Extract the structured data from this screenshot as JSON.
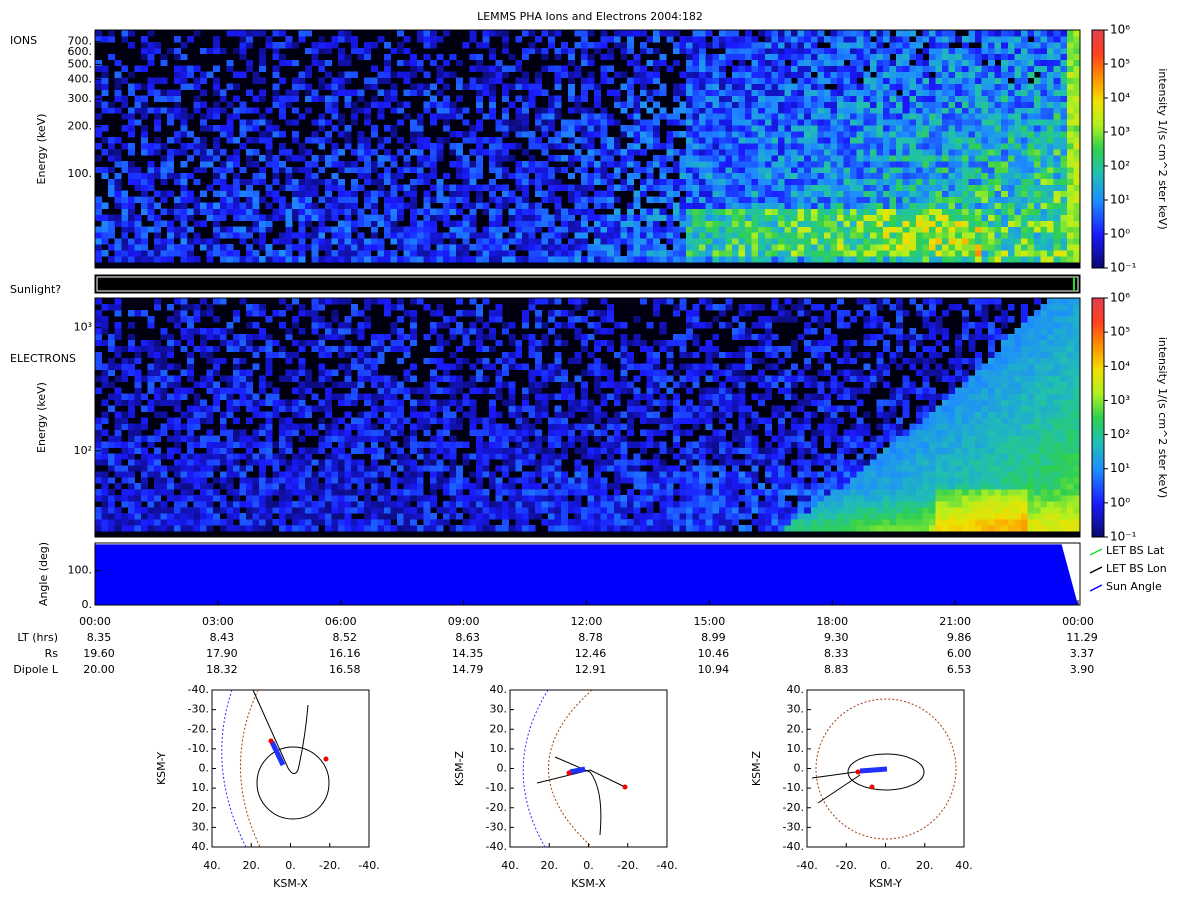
{
  "title": "LEMMS PHA Ions and Electrons  2004:182",
  "sunlight_label": "Sunlight?",
  "time_axis": {
    "xlim": [
      0,
      24
    ],
    "xticks": [
      {
        "value": 0,
        "label": "00:00"
      },
      {
        "value": 3,
        "label": "03:00"
      },
      {
        "value": 6,
        "label": "06:00"
      },
      {
        "value": 9,
        "label": "09:00"
      },
      {
        "value": 12,
        "label": "12:00"
      },
      {
        "value": 15,
        "label": "15:00"
      },
      {
        "value": 18,
        "label": "18:00"
      },
      {
        "value": 21,
        "label": "21:00"
      },
      {
        "value": 24,
        "label": "00:00"
      }
    ]
  },
  "panels": [
    {
      "label": "IONS",
      "y_label": "Energy (keV)",
      "log_y": true,
      "ylim": [
        25,
        830
      ],
      "yticks": [
        {
          "value": 100,
          "label": "100."
        },
        {
          "value": 200,
          "label": "200."
        },
        {
          "value": 300,
          "label": "300."
        },
        {
          "value": 400,
          "label": "400."
        },
        {
          "value": 500,
          "label": "500."
        },
        {
          "value": 600,
          "label": "600."
        },
        {
          "value": 700,
          "label": "700."
        }
      ],
      "colorbar": {
        "label": "intensity 1/(s cm^2 ster keV)",
        "lim": [
          0.1,
          1000000
        ],
        "ticks": [
          {
            "value": 0.1,
            "label": "10⁻¹"
          },
          {
            "value": 1,
            "label": "10⁰"
          },
          {
            "value": 10,
            "label": "10¹"
          },
          {
            "value": 100,
            "label": "10²"
          },
          {
            "value": 1000,
            "label": "10³"
          },
          {
            "value": 10000,
            "label": "10⁴"
          },
          {
            "value": 100000,
            "label": "10⁵"
          },
          {
            "value": 1000000,
            "label": "10⁶"
          }
        ]
      }
    },
    {
      "label": "ELECTRONS",
      "y_label": "Energy (keV)",
      "log_y": true,
      "ylim": [
        20,
        1740
      ],
      "yticks": [
        {
          "value": 100,
          "label": "10²"
        },
        {
          "value": 1000,
          "label": "10³"
        }
      ],
      "colorbar": {
        "label": "intensity 1/(s cm^2 ster keV)",
        "lim": [
          0.1,
          1000000
        ],
        "ticks": [
          {
            "value": 0.1,
            "label": "10⁻¹"
          },
          {
            "value": 1,
            "label": "10⁰"
          },
          {
            "value": 10,
            "label": "10¹"
          },
          {
            "value": 100,
            "label": "10²"
          },
          {
            "value": 1000,
            "label": "10³"
          },
          {
            "value": 10000,
            "label": "10⁴"
          },
          {
            "value": 100000,
            "label": "10⁵"
          },
          {
            "value": 1000000,
            "label": "10⁶"
          }
        ]
      }
    },
    {
      "y_label": "Angle (deg)",
      "ylim": [
        0,
        180
      ],
      "yticks": [
        {
          "value": 0,
          "label": "0."
        },
        {
          "value": 100,
          "label": "100."
        }
      ],
      "series": [
        {
          "name": "LET BS Lat",
          "color": "#22dd22"
        },
        {
          "name": "LET BS Lon",
          "color": "#000000"
        },
        {
          "name": "Sun Angle",
          "color": "#0000ff",
          "x": [
            0,
            3,
            6,
            9,
            12,
            15,
            18,
            21,
            23.6,
            24
          ],
          "values": [
            176,
            176,
            176,
            176,
            176,
            176,
            176,
            176,
            176,
            0
          ]
        }
      ]
    }
  ],
  "ephemeris": [
    {
      "label": "LT (hrs)",
      "values": [
        "8.35",
        "8.43",
        "8.52",
        "8.63",
        "8.78",
        "8.99",
        "9.30",
        "9.86",
        "11.29"
      ]
    },
    {
      "label": "Rs",
      "values": [
        "19.60",
        "17.90",
        "16.16",
        "14.35",
        "12.46",
        "10.46",
        "8.33",
        "6.00",
        "3.37"
      ]
    },
    {
      "label": "Dipole L",
      "values": [
        "20.00",
        "18.32",
        "16.58",
        "14.79",
        "12.91",
        "10.94",
        "8.83",
        "6.53",
        "3.90"
      ]
    }
  ],
  "orbits": [
    {
      "x_label": "KSM-X",
      "y_label": "KSM-Y",
      "xlim": [
        40,
        -40
      ],
      "ylim": [
        40,
        -40
      ],
      "xticks": [
        {
          "value": 40,
          "label": "40."
        },
        {
          "value": 20,
          "label": "20."
        },
        {
          "value": 0,
          "label": "0."
        },
        {
          "value": -20,
          "label": "-20."
        },
        {
          "value": -40,
          "label": "-40."
        }
      ],
      "yticks": [
        {
          "value": -40,
          "label": "-40."
        },
        {
          "value": -30,
          "label": "-30."
        },
        {
          "value": -20,
          "label": "-20."
        },
        {
          "value": -10,
          "label": "-10."
        },
        {
          "value": 0,
          "label": "0."
        },
        {
          "value": 10,
          "label": "10."
        },
        {
          "value": 20,
          "label": "20."
        },
        {
          "value": 30,
          "label": "30."
        },
        {
          "value": 40,
          "label": "40."
        }
      ]
    },
    {
      "x_label": "KSM-X",
      "y_label": "KSM-Z",
      "xlim": [
        40,
        -40
      ],
      "ylim": [
        -40,
        40
      ],
      "xticks": [
        {
          "value": 40,
          "label": "40."
        },
        {
          "value": 20,
          "label": "20."
        },
        {
          "value": 0,
          "label": "0."
        },
        {
          "value": -20,
          "label": "-20."
        },
        {
          "value": -40,
          "label": "-40."
        }
      ],
      "yticks": [
        {
          "value": 40,
          "label": "40."
        },
        {
          "value": 30,
          "label": "30."
        },
        {
          "value": 20,
          "label": "20."
        },
        {
          "value": 10,
          "label": "10."
        },
        {
          "value": 0,
          "label": "0."
        },
        {
          "value": -10,
          "label": "-10."
        },
        {
          "value": -20,
          "label": "-20."
        },
        {
          "value": -30,
          "label": "-30."
        },
        {
          "value": -40,
          "label": "-40."
        }
      ]
    },
    {
      "x_label": "KSM-Y",
      "y_label": "KSM-Z",
      "xlim": [
        -40,
        40
      ],
      "ylim": [
        -40,
        40
      ],
      "xticks": [
        {
          "value": -40,
          "label": "-40."
        },
        {
          "value": -20,
          "label": "-20."
        },
        {
          "value": 0,
          "label": "0."
        },
        {
          "value": 20,
          "label": "20."
        },
        {
          "value": 40,
          "label": "40."
        }
      ],
      "yticks": [
        {
          "value": 40,
          "label": "40."
        },
        {
          "value": 30,
          "label": "30."
        },
        {
          "value": 20,
          "label": "20."
        },
        {
          "value": 10,
          "label": "10."
        },
        {
          "value": 0,
          "label": "0."
        },
        {
          "value": -10,
          "label": "-10."
        },
        {
          "value": -20,
          "label": "-20."
        },
        {
          "value": -30,
          "label": "-30."
        },
        {
          "value": -40,
          "label": "-40."
        }
      ]
    }
  ]
}
